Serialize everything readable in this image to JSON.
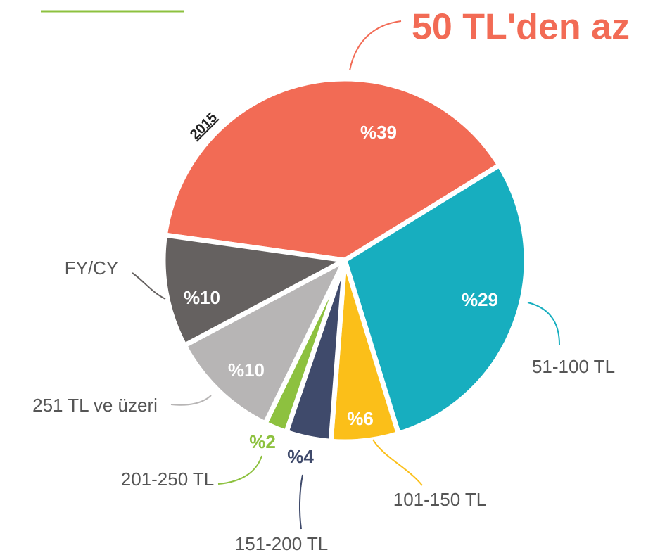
{
  "chart_data": {
    "type": "pie",
    "annotation": "2015",
    "categories": [
      "50 TL'den az",
      "51-100 TL",
      "101-150 TL",
      "151-200 TL",
      "201-250 TL",
      "251 TL ve üzeri",
      "FY/CY"
    ],
    "values": [
      39,
      29,
      6,
      4,
      2,
      10,
      10
    ],
    "value_labels": [
      "%39",
      "%29",
      "%6",
      "%4",
      "%2",
      "%10",
      "%10"
    ],
    "colors": [
      "#f26b55",
      "#17aebf",
      "#fbbf19",
      "#3f4a6b",
      "#8dc13f",
      "#b7b5b5",
      "#656160"
    ]
  }
}
